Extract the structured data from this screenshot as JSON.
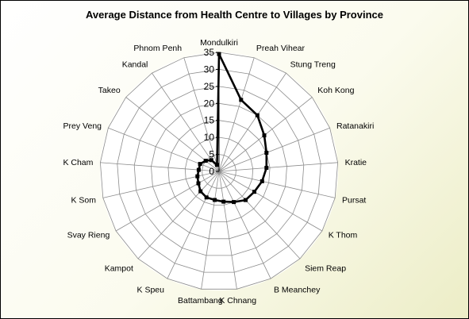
{
  "chart_data": {
    "type": "radar",
    "title": "Average Distance from Health Centre to Villages by Province",
    "categories": [
      "Mondulkiri",
      "Preah Vihear",
      "Stung Treng",
      "Koh Kong",
      "Ratanakiri",
      "Kratie",
      "Pursat",
      "K Thom",
      "Siem Reap",
      "B Meanchey",
      "K Chnang",
      "Battambang",
      "K Speu",
      "Kampot",
      "Svay Rieng",
      "K Som",
      "K Cham",
      "Prey Veng",
      "Takeo",
      "Kandal",
      "Phnom Penh"
    ],
    "series": [
      {
        "values": [
          34.5,
          22,
          20,
          17,
          15,
          14,
          13,
          12,
          11.5,
          10,
          9,
          8.5,
          8.5,
          8,
          7,
          6.5,
          6,
          6,
          5,
          4,
          2
        ]
      }
    ],
    "r_ticks": [
      0,
      5,
      10,
      15,
      20,
      25,
      30,
      35
    ],
    "rlim": [
      0,
      35
    ],
    "grid": true,
    "legend": "none",
    "colors": {
      "line": "#000000",
      "grid": "#8c8c8c",
      "plot_bg": "#ffffff"
    }
  }
}
